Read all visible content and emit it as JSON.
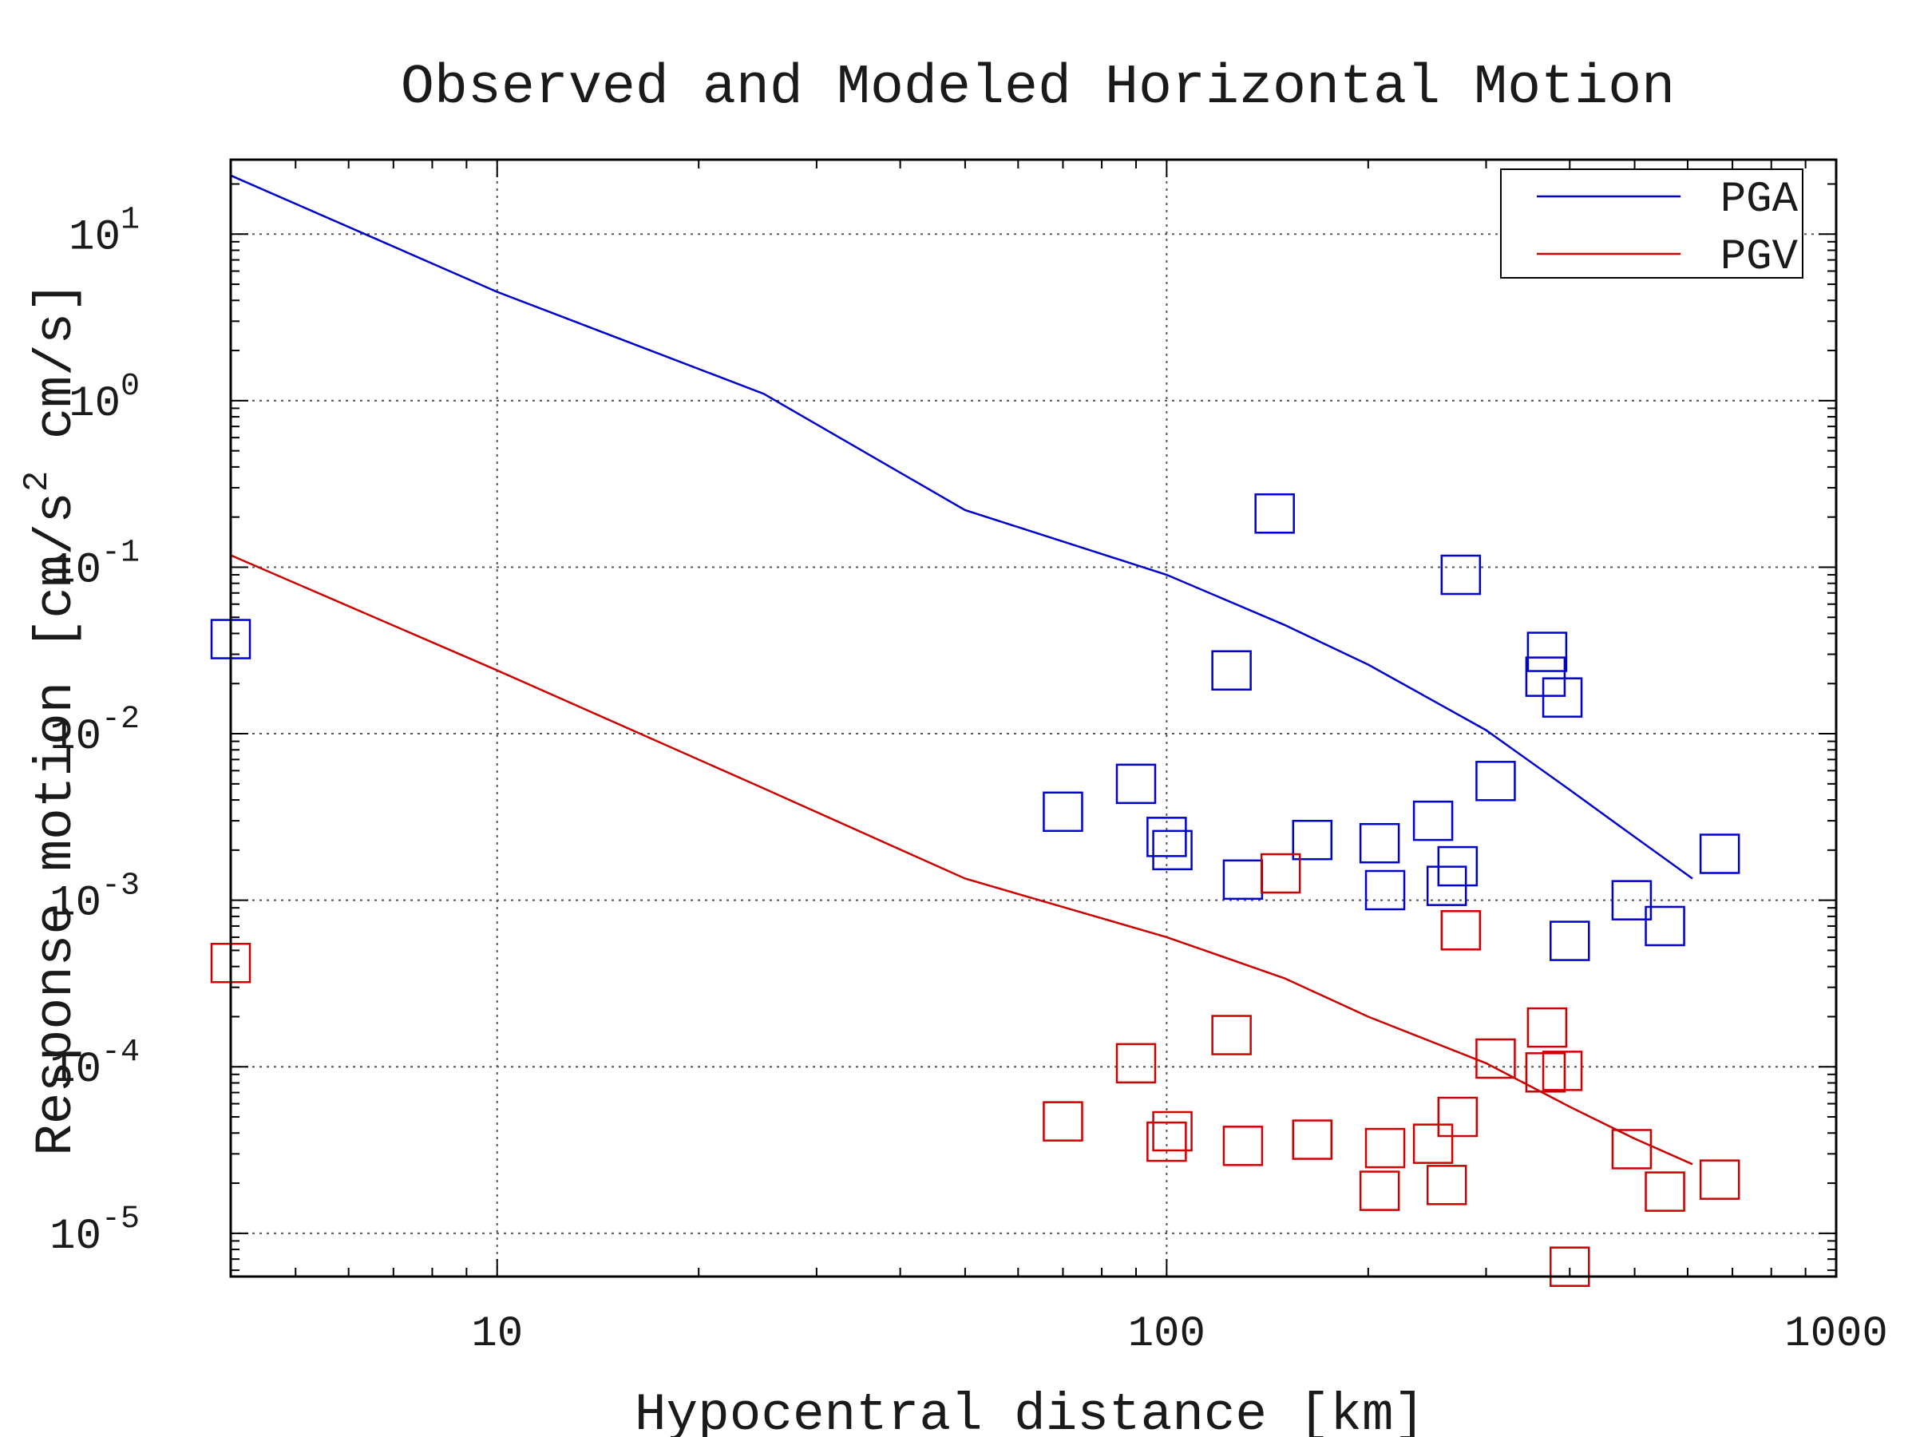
{
  "chart_data": {
    "type": "scatter",
    "title": "Observed and Modeled Horizontal Motion",
    "xlabel": "Hypocentral distance [km]",
    "ylabel_parts": [
      "Response motion [cm/s",
      "2",
      " cm/s]"
    ],
    "x_scale": "log",
    "y_scale": "log",
    "xlim": [
      4,
      1000
    ],
    "ylim": [
      5.5e-06,
      28
    ],
    "grid": true,
    "legend_position": "top-right",
    "x_ticks": [
      {
        "value": 10,
        "label": "10"
      },
      {
        "value": 100,
        "label": "100"
      },
      {
        "value": 1000,
        "label": "1000"
      }
    ],
    "y_ticks": [
      {
        "value": 10,
        "base": "10",
        "exp": "1"
      },
      {
        "value": 1,
        "base": "10",
        "exp": "0"
      },
      {
        "value": 0.1,
        "base": "10",
        "exp": "-1"
      },
      {
        "value": 0.01,
        "base": "10",
        "exp": "-2"
      },
      {
        "value": 0.001,
        "base": "10",
        "exp": "-3"
      },
      {
        "value": 0.0001,
        "base": "10",
        "exp": "-4"
      },
      {
        "value": 1e-05,
        "base": "10",
        "exp": "-5"
      }
    ],
    "series": [
      {
        "name": "PGA",
        "kind": "line",
        "color": "#0000cc",
        "points": [
          [
            4,
            22.5
          ],
          [
            10,
            4.5
          ],
          [
            25,
            1.1
          ],
          [
            50,
            0.22
          ],
          [
            100,
            0.09
          ],
          [
            150,
            0.045
          ],
          [
            200,
            0.026
          ],
          [
            300,
            0.0105
          ],
          [
            400,
            0.0046
          ],
          [
            500,
            0.0024
          ],
          [
            610,
            0.00135
          ]
        ]
      },
      {
        "name": "PGV",
        "kind": "line",
        "color": "#cc0000",
        "points": [
          [
            4,
            0.118
          ],
          [
            10,
            0.024
          ],
          [
            25,
            0.0047
          ],
          [
            50,
            0.00135
          ],
          [
            100,
            0.0006
          ],
          [
            150,
            0.00034
          ],
          [
            200,
            0.0002
          ],
          [
            300,
            0.000105
          ],
          [
            400,
            5.75e-05
          ],
          [
            500,
            3.7e-05
          ],
          [
            610,
            2.6e-05
          ]
        ]
      },
      {
        "name": "PGA",
        "kind": "scatter",
        "color": "#0000cc",
        "points": [
          [
            4,
            0.037
          ],
          [
            70,
            0.0034
          ],
          [
            90,
            0.005
          ],
          [
            100,
            0.0024
          ],
          [
            102,
            0.002
          ],
          [
            125,
            0.024
          ],
          [
            130,
            0.00133
          ],
          [
            145,
            0.21
          ],
          [
            165,
            0.0023
          ],
          [
            208,
            0.0022
          ],
          [
            212,
            0.00115
          ],
          [
            250,
            0.003
          ],
          [
            262,
            0.00122
          ],
          [
            272,
            0.0016
          ],
          [
            275,
            0.09
          ],
          [
            310,
            0.0052
          ],
          [
            370,
            0.031
          ],
          [
            368,
            0.022
          ],
          [
            390,
            0.0165
          ],
          [
            400,
            0.00057
          ],
          [
            495,
            0.001
          ],
          [
            555,
            0.0007
          ],
          [
            670,
            0.0019
          ]
        ]
      },
      {
        "name": "PGV",
        "kind": "scatter",
        "color": "#cc0000",
        "points": [
          [
            4,
            0.00042
          ],
          [
            70,
            4.7e-05
          ],
          [
            90,
            0.000105
          ],
          [
            100,
            3.55e-05
          ],
          [
            102,
            4.1e-05
          ],
          [
            125,
            0.000155
          ],
          [
            130,
            3.35e-05
          ],
          [
            148,
            0.00145
          ],
          [
            165,
            3.65e-05
          ],
          [
            208,
            1.8e-05
          ],
          [
            212,
            3.25e-05
          ],
          [
            250,
            3.45e-05
          ],
          [
            262,
            1.95e-05
          ],
          [
            272,
            5e-05
          ],
          [
            275,
            0.00066
          ],
          [
            310,
            0.000112
          ],
          [
            370,
            0.000172
          ],
          [
            368,
            9.25e-05
          ],
          [
            390,
            9.45e-05
          ],
          [
            400,
            6.3e-06
          ],
          [
            495,
            3.2e-05
          ],
          [
            555,
            1.78e-05
          ],
          [
            670,
            2.1e-05
          ]
        ]
      }
    ]
  }
}
